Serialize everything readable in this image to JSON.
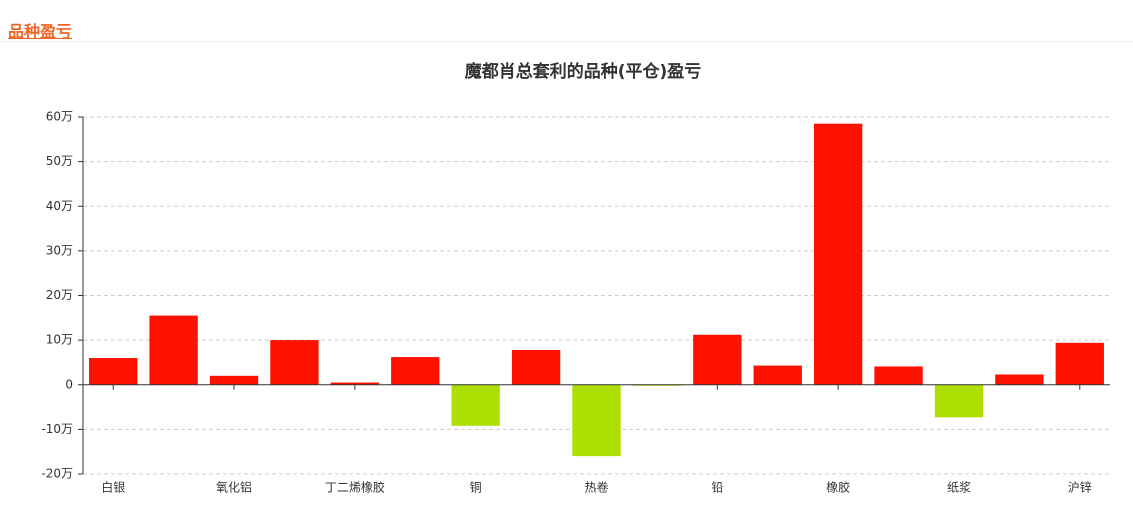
{
  "header": {
    "title": "品种盈亏"
  },
  "chart_data": {
    "type": "bar",
    "title": "魔都肖总套利的品种(平仓)盈亏",
    "categories": [
      "白银",
      null,
      "氧化铝",
      null,
      "丁二烯橡胶",
      null,
      "铜",
      null,
      "热卷",
      null,
      "铅",
      null,
      "橡胶",
      null,
      "纸浆",
      null,
      "沪锌"
    ],
    "values": [
      6,
      15.5,
      2,
      10,
      0.5,
      6.2,
      -9.2,
      7.8,
      -16,
      -0.1,
      11.2,
      4.3,
      58.5,
      4.1,
      -7.3,
      2.3,
      9.4
    ],
    "color_positive": "#ff1100",
    "color_negative": "#addf00",
    "ylim": [
      -20,
      60
    ],
    "yticks": [
      {
        "value": -20,
        "label": "-20万"
      },
      {
        "value": -10,
        "label": "-10万"
      },
      0,
      {
        "value": 10,
        "label": "10万"
      },
      {
        "value": 20,
        "label": "20万"
      },
      {
        "value": 30,
        "label": "30万"
      },
      {
        "value": 40,
        "label": "40万"
      },
      {
        "value": 50,
        "label": "50万"
      },
      {
        "value": 60,
        "label": "60万"
      }
    ],
    "grid": true
  }
}
